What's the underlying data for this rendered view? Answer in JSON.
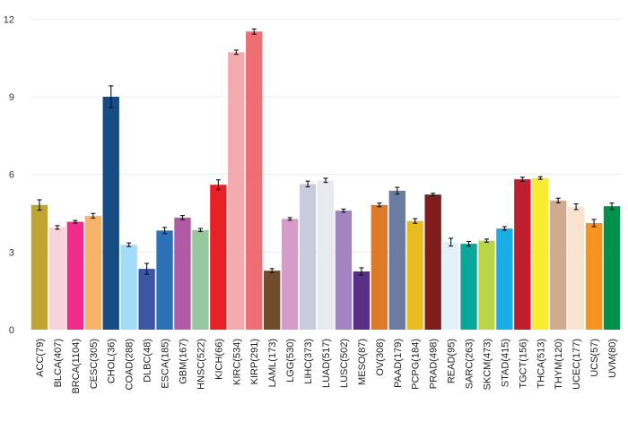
{
  "chart_data": {
    "type": "bar",
    "title": "",
    "xlabel": "",
    "ylabel": "",
    "ylim": [
      0,
      12.6
    ],
    "yticks": [
      0,
      3,
      6,
      9,
      12
    ],
    "grid": "horizontal",
    "error_bars": true,
    "categories": [
      "ACC(79)",
      "BLCA(407)",
      "BRCA(1104)",
      "CESC(305)",
      "CHOL(36)",
      "COAD(288)",
      "DLBC(48)",
      "ESCA(185)",
      "GBM(167)",
      "HNSC(522)",
      "KICH(66)",
      "KIRC(534)",
      "KIRP(291)",
      "LAML(173)",
      "LGG(530)",
      "LIHC(373)",
      "LUAD(517)",
      "LUSC(502)",
      "MESO(87)",
      "OV(308)",
      "PAAD(179)",
      "PCPG(184)",
      "PRAD(498)",
      "READ(95)",
      "SARC(263)",
      "SKCM(473)",
      "STAD(415)",
      "TGCT(156)",
      "THCA(513)",
      "THYM(120)",
      "UCEC(177)",
      "UCS(57)",
      "UVM(80)"
    ],
    "values": [
      4.82,
      3.95,
      4.17,
      4.4,
      9.0,
      3.28,
      2.35,
      3.83,
      4.33,
      3.85,
      5.6,
      10.72,
      11.52,
      2.28,
      4.28,
      5.63,
      5.77,
      4.6,
      2.25,
      4.82,
      5.37,
      4.2,
      5.22,
      3.38,
      3.32,
      3.44,
      3.91,
      5.81,
      5.86,
      4.99,
      4.75,
      4.12,
      4.77
    ],
    "errors": [
      0.2,
      0.07,
      0.05,
      0.09,
      0.42,
      0.07,
      0.21,
      0.12,
      0.08,
      0.06,
      0.19,
      0.08,
      0.1,
      0.08,
      0.05,
      0.11,
      0.08,
      0.06,
      0.14,
      0.07,
      0.13,
      0.09,
      0.05,
      0.15,
      0.09,
      0.06,
      0.07,
      0.08,
      0.05,
      0.09,
      0.11,
      0.14,
      0.12
    ],
    "colors": [
      "#c0a432",
      "#f9d3d9",
      "#ef2c8a",
      "#f6b46a",
      "#174b84",
      "#a2dcf8",
      "#3c55a5",
      "#2a71b6",
      "#b05aa4",
      "#96c89d",
      "#e82126",
      "#f4abb0",
      "#ed6f73",
      "#6f4c2c",
      "#d59cc9",
      "#c8ccdc",
      "#e9e9f1",
      "#a184c0",
      "#5a2f88",
      "#dd7a26",
      "#6c7ba1",
      "#e7bb22",
      "#7f1c1e",
      "#e3f1fb",
      "#0aa89a",
      "#bcd544",
      "#1aaee8",
      "#be1e2d",
      "#f9eb2f",
      "#d1ab8e",
      "#fbe3cf",
      "#f7941d",
      "#00924a"
    ]
  }
}
